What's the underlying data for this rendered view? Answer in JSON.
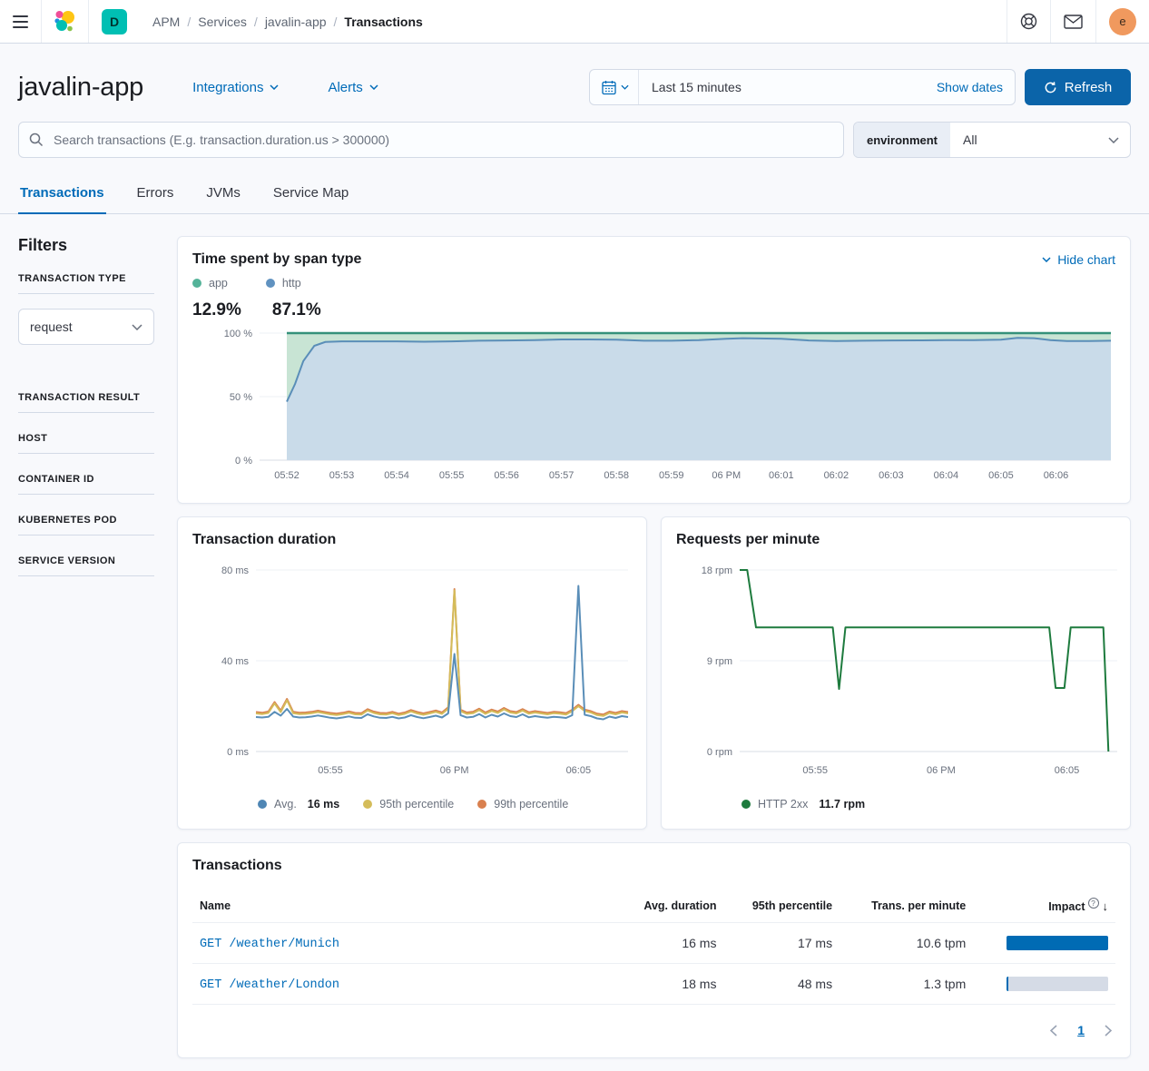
{
  "topbar": {
    "breadcrumbs": [
      "APM",
      "Services",
      "javalin-app"
    ],
    "current_crumb": "Transactions",
    "deployment_badge": "D",
    "avatar_initial": "e"
  },
  "header": {
    "title": "javalin-app",
    "integrations_label": "Integrations",
    "alerts_label": "Alerts",
    "time_range": "Last 15 minutes",
    "show_dates_label": "Show dates",
    "refresh_label": "Refresh"
  },
  "search": {
    "placeholder": "Search transactions (E.g. transaction.duration.us > 300000)",
    "environment_label": "environment",
    "environment_value": "All"
  },
  "tabs": [
    {
      "label": "Transactions",
      "active": true
    },
    {
      "label": "Errors",
      "active": false
    },
    {
      "label": "JVMs",
      "active": false
    },
    {
      "label": "Service Map",
      "active": false
    }
  ],
  "filters": {
    "heading": "Filters",
    "transaction_type_label": "TRANSACTION TYPE",
    "transaction_type_value": "request",
    "sections": [
      "TRANSACTION RESULT",
      "HOST",
      "CONTAINER ID",
      "KUBERNETES POD",
      "SERVICE VERSION"
    ]
  },
  "span_panel": {
    "title": "Time spent by span type",
    "hide_chart_label": "Hide chart",
    "legend_app": "app",
    "legend_http": "http",
    "app_pct": "12.9%",
    "http_pct": "87.1%",
    "colors": {
      "app_dot": "#54b399",
      "http_dot": "#6092c0"
    }
  },
  "duration_panel": {
    "title": "Transaction duration",
    "legend_avg_label": "Avg.",
    "legend_avg_value": "16 ms",
    "legend_p95": "95th percentile",
    "legend_p99": "99th percentile"
  },
  "rpm_panel": {
    "title": "Requests per minute",
    "legend_label": "HTTP 2xx",
    "legend_value": "11.7 rpm"
  },
  "table": {
    "title": "Transactions",
    "headers": {
      "name": "Name",
      "avg": "Avg. duration",
      "p95": "95th percentile",
      "tpm": "Trans. per minute",
      "impact": "Impact",
      "sort_arrow": "↓",
      "help": "?"
    },
    "rows": [
      {
        "name": "GET /weather/Munich",
        "avg": "16 ms",
        "p95": "17 ms",
        "tpm": "10.6 tpm",
        "impact_pct": 100
      },
      {
        "name": "GET /weather/London",
        "avg": "18 ms",
        "p95": "48 ms",
        "tpm": "1.3 tpm",
        "impact_pct": 2
      }
    ]
  },
  "pagination": {
    "page": "1"
  },
  "chart_data": [
    {
      "type": "area",
      "title": "Time spent by span type",
      "stacked_percent": true,
      "ylabel": "%",
      "ylim": [
        0,
        100
      ],
      "y_ticks": [
        "0 %",
        "50 %",
        "100 %"
      ],
      "x_ticks": [
        "05:52",
        "05:53",
        "05:54",
        "05:55",
        "05:56",
        "05:57",
        "05:58",
        "05:59",
        "06 PM",
        "06:01",
        "06:02",
        "06:03",
        "06:04",
        "06:05",
        "06:06"
      ],
      "series": [
        {
          "name": "http",
          "color": "#5a8eb8",
          "fill": "#c9dbe9",
          "points": [
            [
              0,
              46
            ],
            [
              0.15,
              60
            ],
            [
              0.3,
              78
            ],
            [
              0.5,
              90
            ],
            [
              0.7,
              93
            ],
            [
              1,
              93.5
            ],
            [
              1.5,
              93.5
            ],
            [
              2,
              93.5
            ],
            [
              2.5,
              93.2
            ],
            [
              3,
              93.5
            ],
            [
              3.5,
              94
            ],
            [
              4,
              94.2
            ],
            [
              4.5,
              94.5
            ],
            [
              5,
              95
            ],
            [
              5.5,
              95
            ],
            [
              6,
              94.8
            ],
            [
              6.5,
              94
            ],
            [
              7,
              94
            ],
            [
              7.5,
              94.5
            ],
            [
              8,
              95.5
            ],
            [
              8.3,
              96
            ],
            [
              8.6,
              95.8
            ],
            [
              9,
              95.5
            ],
            [
              9.5,
              94.2
            ],
            [
              10,
              93.8
            ],
            [
              10.5,
              94
            ],
            [
              11,
              94.2
            ],
            [
              11.5,
              94.3
            ],
            [
              12,
              94.5
            ],
            [
              12.5,
              94.5
            ],
            [
              13,
              94.8
            ],
            [
              13.3,
              96.3
            ],
            [
              13.6,
              96
            ],
            [
              13.9,
              94.5
            ],
            [
              14.2,
              93.8
            ],
            [
              14.6,
              93.8
            ],
            [
              15,
              94
            ]
          ]
        },
        {
          "name": "app",
          "color": "#35917a",
          "fill": "#c8e4d4",
          "note": "remainder up to 100%"
        }
      ]
    },
    {
      "type": "line",
      "title": "Transaction duration",
      "ylabel": "ms",
      "ylim": [
        0,
        80
      ],
      "y_ticks": [
        "0 ms",
        "40 ms",
        "80 ms"
      ],
      "x_ticks": [
        {
          "m": 3,
          "label": "05:55"
        },
        {
          "m": 8,
          "label": "06 PM"
        },
        {
          "m": 13,
          "label": "06:05"
        }
      ],
      "x_step_minutes": 0.25,
      "series": [
        {
          "name": "99th percentile",
          "color": "#d9804f",
          "values": [
            17.4,
            17.1,
            17.6,
            21.8,
            18.0,
            23.2,
            17.5,
            17.1,
            17.2,
            17.5,
            18.0,
            17.5,
            17.0,
            16.7,
            17.1,
            17.7,
            17.0,
            16.9,
            18.7,
            17.6,
            17.0,
            16.9,
            17.5,
            16.7,
            17.2,
            18.3,
            17.4,
            16.8,
            17.4,
            18.1,
            17.2,
            19.5,
            71.6,
            18.4,
            17.2,
            17.5,
            18.9,
            17.2,
            18.5,
            17.6,
            19.2,
            17.8,
            17.4,
            18.7,
            17.3,
            17.8,
            17.4,
            17.0,
            17.5,
            17.3,
            16.9,
            18.4,
            20.6,
            18.5,
            17.8,
            16.7,
            16.3,
            17.6,
            17.0,
            17.8,
            17.4
          ]
        },
        {
          "name": "95th percentile",
          "color": "#d4bc5a",
          "values": [
            16.8,
            16.5,
            17.0,
            21.2,
            17.4,
            22.6,
            16.9,
            16.5,
            16.6,
            16.9,
            17.4,
            16.9,
            16.4,
            16.1,
            16.5,
            17.1,
            16.4,
            16.3,
            18.1,
            17.0,
            16.4,
            16.3,
            16.9,
            16.1,
            16.6,
            17.7,
            16.8,
            16.2,
            16.8,
            17.5,
            16.6,
            18.9,
            71.0,
            17.8,
            16.6,
            16.9,
            18.3,
            16.6,
            17.9,
            17.0,
            18.6,
            17.2,
            16.8,
            18.1,
            16.7,
            17.2,
            16.8,
            16.4,
            16.9,
            16.7,
            16.3,
            17.8,
            20.0,
            17.9,
            17.2,
            16.1,
            15.7,
            17.0,
            16.4,
            17.2,
            16.8
          ]
        },
        {
          "name": "Avg.",
          "color": "#5a8eb8",
          "avg_value": "16 ms",
          "values": [
            15.2,
            15.0,
            15.3,
            17.5,
            15.8,
            18.8,
            15.4,
            15.0,
            15.1,
            15.4,
            15.9,
            15.4,
            14.9,
            14.6,
            15.0,
            15.5,
            14.9,
            14.8,
            16.4,
            15.5,
            14.9,
            14.8,
            15.3,
            14.6,
            15.0,
            16.0,
            15.2,
            14.7,
            15.2,
            15.8,
            15.0,
            16.8,
            43.0,
            16.0,
            15.0,
            15.3,
            16.5,
            15.0,
            16.2,
            15.4,
            16.8,
            15.6,
            15.2,
            16.4,
            15.1,
            15.6,
            15.2,
            14.9,
            15.3,
            15.1,
            14.8,
            16.0,
            73.0,
            16.2,
            15.6,
            14.6,
            14.2,
            15.4,
            14.8,
            15.6,
            15.2
          ]
        }
      ]
    },
    {
      "type": "line",
      "title": "Requests per minute",
      "ylabel": "rpm",
      "ylim": [
        0,
        18
      ],
      "y_ticks": [
        "0 rpm",
        "9 rpm",
        "18 rpm"
      ],
      "x_ticks": [
        {
          "m": 3,
          "label": "05:55"
        },
        {
          "m": 8,
          "label": "06 PM"
        },
        {
          "m": 13,
          "label": "06:05"
        }
      ],
      "series": [
        {
          "name": "HTTP 2xx",
          "color": "#1e7b3e",
          "current": "11.7 rpm",
          "points": [
            [
              0,
              18
            ],
            [
              0.3,
              18
            ],
            [
              0.65,
              12.3
            ],
            [
              3.7,
              12.3
            ],
            [
              3.95,
              6.2
            ],
            [
              4.2,
              12.3
            ],
            [
              12.3,
              12.3
            ],
            [
              12.55,
              6.3
            ],
            [
              12.9,
              6.3
            ],
            [
              13.15,
              12.3
            ],
            [
              14.45,
              12.3
            ],
            [
              14.65,
              0
            ]
          ]
        }
      ]
    }
  ]
}
